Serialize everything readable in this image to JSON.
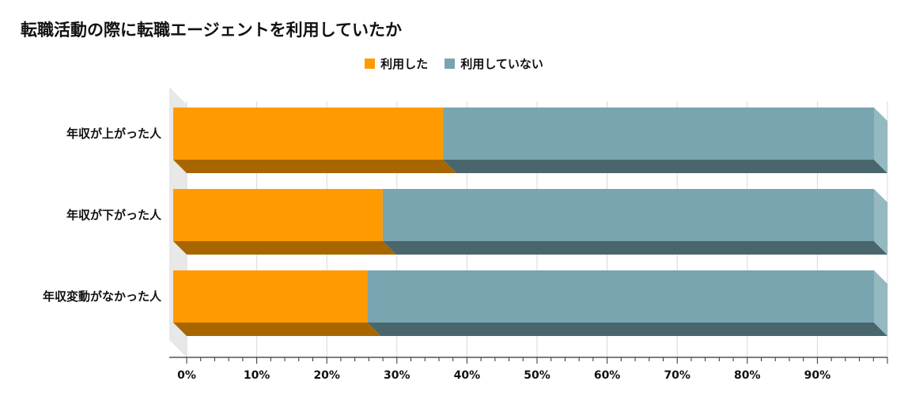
{
  "title": "転職活動の際に転職エージェントを利用していたか",
  "chart_data": {
    "type": "bar",
    "orientation": "horizontal",
    "stacked": true,
    "title": "転職活動の際に転職エージェントを利用していたか",
    "categories": [
      "年収が上がった人",
      "年収が下がった人",
      "年収変動がなかった人"
    ],
    "series": [
      {
        "name": "利用した",
        "values": [
          38.5,
          29.9,
          27.7
        ],
        "color": "#FF9B00"
      },
      {
        "name": "利用していない",
        "values": [
          61.5,
          70.1,
          72.3
        ],
        "color": "#78A5AF"
      }
    ],
    "xlim": [
      0,
      100
    ],
    "xticks": [
      "0%",
      "10%",
      "20%",
      "30%",
      "40%",
      "50%",
      "60%",
      "70%",
      "80%",
      "90%"
    ],
    "legend_position": "top",
    "grid": true,
    "style": "3d"
  }
}
